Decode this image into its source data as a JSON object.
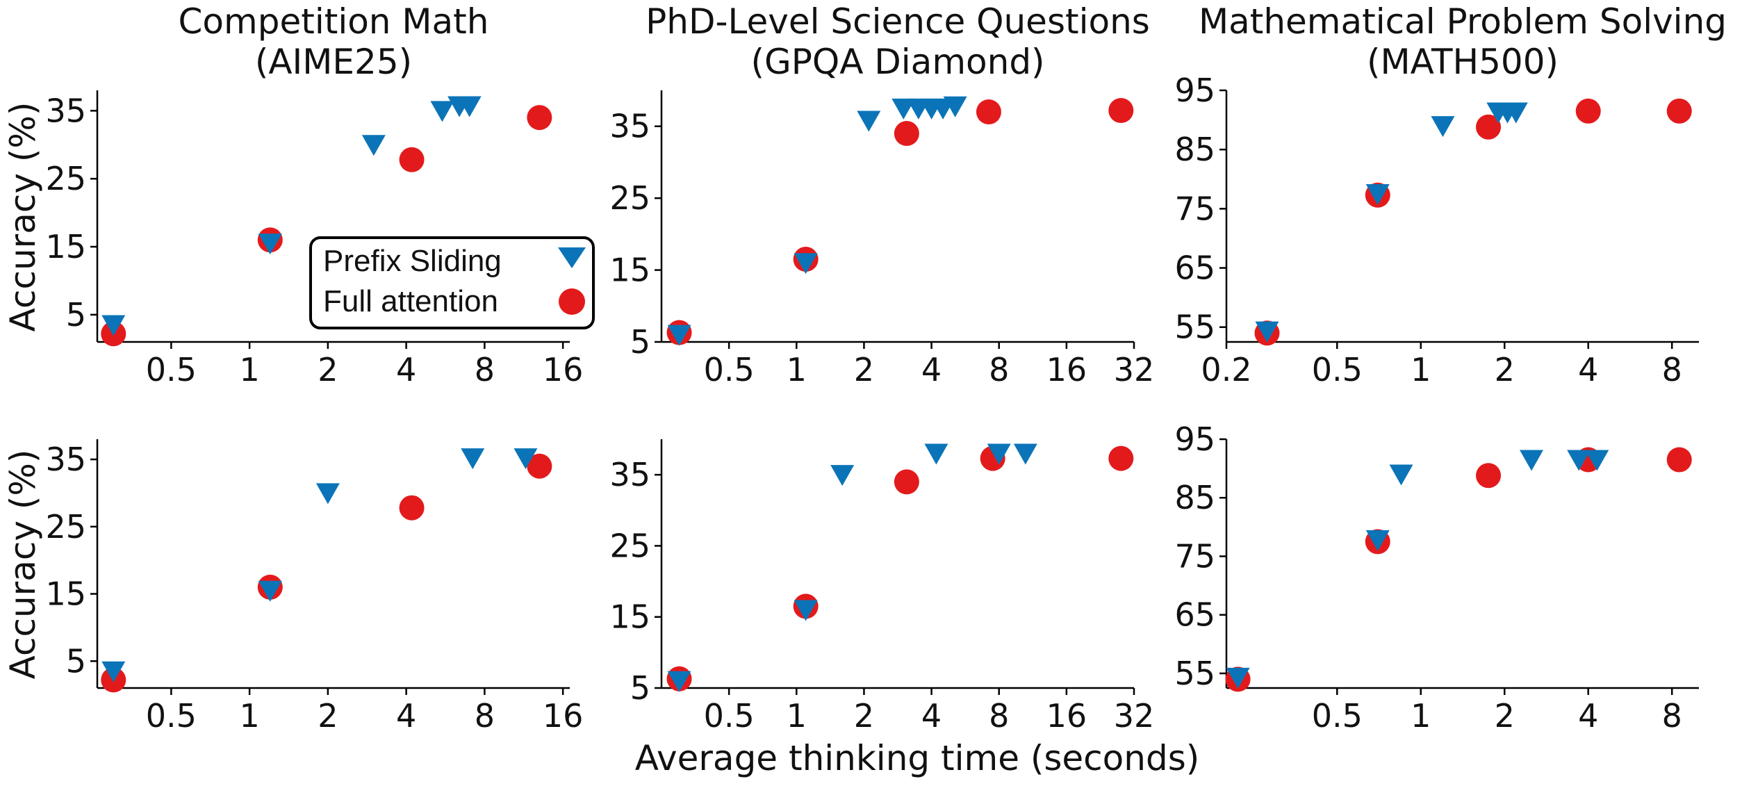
{
  "figure": {
    "xlabel": "Average thinking time (seconds)",
    "ylabel": "Accuracy (%)",
    "colors": {
      "prefix": "#0b74b8",
      "full": "#e31a1c"
    }
  },
  "legend": {
    "entries": [
      {
        "label": "Prefix Sliding",
        "marker": "triangle-down",
        "color": "#0b74b8"
      },
      {
        "label": "Full attention",
        "marker": "circle",
        "color": "#e31a1c"
      }
    ]
  },
  "chart_data": [
    {
      "type": "scatter",
      "row": 0,
      "col": 0,
      "title": "Competition Math\n(AIME25)",
      "xscale": "log2",
      "xlim": [
        0.26,
        17
      ],
      "xticks": [
        0.5,
        1,
        2,
        4,
        8,
        16
      ],
      "xticklabels": [
        "0.5",
        "1",
        "2",
        "4",
        "8",
        "16"
      ],
      "ylim": [
        1,
        38
      ],
      "yticks": [
        5,
        15,
        25,
        35
      ],
      "yticklabels": [
        "5",
        "15",
        "25",
        "35"
      ],
      "series": [
        {
          "name": "Prefix Sliding",
          "x": [
            0.3,
            1.2,
            3.0,
            5.5,
            6.4,
            7.0
          ],
          "y": [
            3.5,
            15.5,
            30.0,
            35.0,
            35.7,
            35.7
          ]
        },
        {
          "name": "Full attention",
          "x": [
            0.3,
            1.2,
            4.2,
            13.0
          ],
          "y": [
            2.2,
            16.0,
            27.8,
            34.0
          ]
        }
      ]
    },
    {
      "type": "scatter",
      "row": 0,
      "col": 1,
      "title": "PhD-Level Science Questions\n(GPQA Diamond)",
      "xscale": "log2",
      "xlim": [
        0.25,
        32
      ],
      "xticks": [
        0.5,
        1,
        2,
        4,
        8,
        16,
        32
      ],
      "xticklabels": [
        "0.5",
        "1",
        "2",
        "4",
        "8",
        "16",
        "32"
      ],
      "ylim": [
        5,
        40
      ],
      "yticks": [
        5,
        15,
        25,
        35
      ],
      "yticklabels": [
        "5",
        "15",
        "25",
        "35"
      ],
      "series": [
        {
          "name": "Prefix Sliding",
          "x": [
            0.3,
            1.1,
            2.1,
            3.0,
            3.5,
            4.0,
            4.5,
            5.1
          ],
          "y": [
            6.0,
            16.0,
            35.8,
            37.5,
            37.5,
            37.5,
            37.5,
            37.8
          ]
        },
        {
          "name": "Full attention",
          "x": [
            0.3,
            1.1,
            3.1,
            7.2,
            28.0
          ],
          "y": [
            6.3,
            16.5,
            34.0,
            37.0,
            37.2
          ]
        }
      ]
    },
    {
      "type": "scatter",
      "row": 0,
      "col": 2,
      "title": "Mathematical Problem Solving\n(MATH500)",
      "xscale": "log2",
      "xlim": [
        0.2,
        10
      ],
      "xticks": [
        0.2,
        0.5,
        1,
        2,
        4,
        8
      ],
      "xticklabels": [
        "0.2",
        "0.5",
        "1",
        "2",
        "4",
        "8"
      ],
      "ylim": [
        52.5,
        95
      ],
      "yticks": [
        55,
        65,
        75,
        85,
        95
      ],
      "yticklabels": [
        "55",
        "65",
        "75",
        "85",
        "95"
      ],
      "series": [
        {
          "name": "Prefix Sliding",
          "x": [
            0.28,
            0.7,
            1.2,
            1.9,
            2.05,
            2.2
          ],
          "y": [
            54.3,
            77.5,
            89.0,
            91.3,
            91.3,
            91.3
          ]
        },
        {
          "name": "Full attention",
          "x": [
            0.28,
            0.7,
            1.75,
            4.0,
            8.5
          ],
          "y": [
            54.0,
            77.3,
            88.8,
            91.5,
            91.5
          ]
        }
      ]
    },
    {
      "type": "scatter",
      "row": 1,
      "col": 0,
      "title": "",
      "xscale": "log2",
      "xlim": [
        0.26,
        17
      ],
      "xticks": [
        0.5,
        1,
        2,
        4,
        8,
        16
      ],
      "xticklabels": [
        "0.5",
        "1",
        "2",
        "4",
        "8",
        "16"
      ],
      "ylim": [
        1,
        38
      ],
      "yticks": [
        5,
        15,
        25,
        35
      ],
      "yticklabels": [
        "5",
        "15",
        "25",
        "35"
      ],
      "series": [
        {
          "name": "Prefix Sliding",
          "x": [
            0.3,
            1.2,
            2.0,
            7.2,
            11.5
          ],
          "y": [
            3.5,
            15.5,
            30.0,
            35.2,
            35.2
          ]
        },
        {
          "name": "Full attention",
          "x": [
            0.3,
            1.2,
            4.2,
            13.0
          ],
          "y": [
            2.2,
            16.0,
            27.8,
            34.0
          ]
        }
      ]
    },
    {
      "type": "scatter",
      "row": 1,
      "col": 1,
      "title": "",
      "xscale": "log2",
      "xlim": [
        0.25,
        32
      ],
      "xticks": [
        0.5,
        1,
        2,
        4,
        8,
        16,
        32
      ],
      "xticklabels": [
        "0.5",
        "1",
        "2",
        "4",
        "8",
        "16",
        "32"
      ],
      "ylim": [
        5,
        40
      ],
      "yticks": [
        5,
        15,
        25,
        35
      ],
      "yticklabels": [
        "5",
        "15",
        "25",
        "35"
      ],
      "series": [
        {
          "name": "Prefix Sliding",
          "x": [
            0.3,
            1.1,
            1.6,
            4.2,
            8.0,
            10.5
          ],
          "y": [
            6.0,
            16.0,
            35.0,
            38.0,
            38.0,
            38.0
          ]
        },
        {
          "name": "Full attention",
          "x": [
            0.3,
            1.1,
            3.1,
            7.5,
            28.0
          ],
          "y": [
            6.3,
            16.5,
            34.0,
            37.3,
            37.3
          ]
        }
      ]
    },
    {
      "type": "scatter",
      "row": 1,
      "col": 2,
      "title": "",
      "xscale": "log2",
      "xlim": [
        0.2,
        10
      ],
      "xticks": [
        0.5,
        1,
        2,
        4,
        8
      ],
      "xticklabels": [
        "0.5",
        "1",
        "2",
        "4",
        "8"
      ],
      "ylim": [
        52.5,
        95
      ],
      "yticks": [
        55,
        65,
        75,
        85,
        95
      ],
      "yticklabels": [
        "55",
        "65",
        "75",
        "85",
        "95"
      ],
      "series": [
        {
          "name": "Prefix Sliding",
          "x": [
            0.22,
            0.7,
            0.85,
            2.5,
            3.7,
            4.3
          ],
          "y": [
            54.3,
            77.8,
            89.0,
            91.5,
            91.5,
            91.5
          ]
        },
        {
          "name": "Full attention",
          "x": [
            0.22,
            0.7,
            1.75,
            4.0,
            8.5
          ],
          "y": [
            54.0,
            77.5,
            88.8,
            91.5,
            91.5
          ]
        }
      ]
    }
  ]
}
